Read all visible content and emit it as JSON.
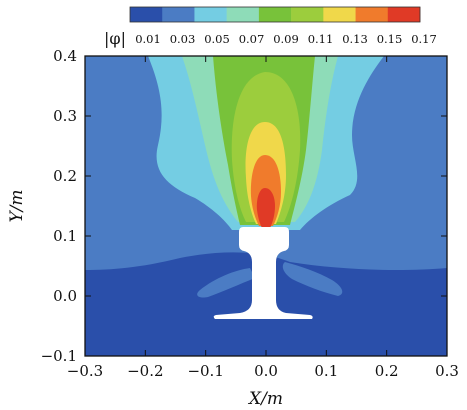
{
  "chart_data": {
    "type": "heatmap",
    "title": "",
    "xlabel": "X/m",
    "ylabel": "Y/m",
    "xlim": [
      -0.3,
      0.3
    ],
    "ylim": [
      -0.1,
      0.4
    ],
    "x_ticks": [
      "−0.3",
      "−0.2",
      "−0.1",
      "0.0",
      "0.1",
      "0.2",
      "0.3"
    ],
    "y_ticks": [
      "−0.1",
      "0.0",
      "0.1",
      "0.2",
      "0.3",
      "0.4"
    ],
    "colorbar": {
      "label": "|φ|",
      "levels": [
        "0.01",
        "0.03",
        "0.05",
        "0.07",
        "0.09",
        "0.11",
        "0.13",
        "0.15",
        "0.17"
      ],
      "colors": [
        "#2a4faa",
        "#4b7cc4",
        "#74cde3",
        "#8edcb8",
        "#78c23a",
        "#9ccd3d",
        "#f0d84a",
        "#f07b2c",
        "#e03a26"
      ]
    },
    "contour_colors": {
      "deep": "#2a4faa",
      "mid": "#4b7cc4",
      "cyan": "#74cde3",
      "mint": "#8edcb8",
      "green": "#78c23a",
      "lime": "#9ccd3d",
      "yellow": "#f0d84a",
      "orange": "#f07b2c",
      "red": "#e03a26",
      "rail": "#ffffff"
    }
  }
}
